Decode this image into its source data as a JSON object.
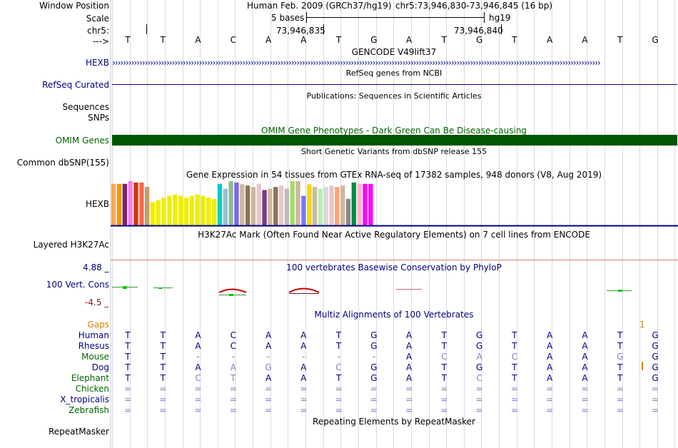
{
  "labels": {
    "window_position": "Window Position",
    "scale": "Scale",
    "chr": "chr5:",
    "arrow": "--->",
    "hexb_gencode": "HEXB",
    "refseq": "RefSeq Curated",
    "sequences": "Sequences",
    "snps": "SNPs",
    "omim": "OMIM Genes",
    "common_dbsnp": "Common dbSNP(155)",
    "hexb_gtex": "HEXB",
    "h3k27ac": "Layered H3K27Ac",
    "cons": "100 Vert. Cons",
    "cons_max": "4.88 _",
    "cons_min": "-4.5 _",
    "gaps": "Gaps",
    "repeatmasker": "RepeatMasker"
  },
  "header": {
    "assembly": "Human Feb. 2009 (GRCh37/hg19)",
    "position": "chr5:73,946,830-73,946,845 (16 bp)",
    "scale_text": "5 bases",
    "scale_db": "hg19",
    "coord1": "73,946,835",
    "coord2": "73,946,840"
  },
  "bases": [
    "T",
    "T",
    "A",
    "C",
    "A",
    "A",
    "T",
    "G",
    "A",
    "T",
    "G",
    "T",
    "A",
    "A",
    "T",
    "G"
  ],
  "tracks": {
    "gencode": "GENCODE V49lift37",
    "refseq": "RefSeq genes from NCBI",
    "publications": "Publications: Sequences in Scientific Articles",
    "omim": "OMIM Gene Phenotypes - Dark Green Can Be Disease-causing",
    "dbsnp": "Short Genetic Variants from dbSNP release 155",
    "gtex": "Gene Expression in 54 tissues from GTEx RNA-seq of 17382 samples, 948 donors (V8, Aug 2019)",
    "h3k27ac": "H3K27Ac Mark (Often Found Near Active Regulatory Elements) on 7 cell lines from ENCODE",
    "phylop": "100 vertebrates Basewise Conservation by PhyloP",
    "multiz": "Multiz Alignments of 100 Vertebrates",
    "repeatmasker": "Repeating Elements by RepeatMasker"
  },
  "gaps_value": "1",
  "species": [
    {
      "name": "Human",
      "seq": [
        "T",
        "T",
        "A",
        "C",
        "A",
        "A",
        "T",
        "G",
        "A",
        "T",
        "G",
        "T",
        "A",
        "A",
        "T",
        "G"
      ]
    },
    {
      "name": "Rhesus",
      "seq": [
        "T",
        "T",
        "A",
        "C",
        "A",
        "A",
        "T",
        "G",
        "A",
        "T",
        "G",
        "T",
        "A",
        "A",
        "T",
        "G"
      ]
    },
    {
      "name": "Mouse",
      "seq": [
        "T",
        "T",
        "-",
        "-",
        "-",
        "-",
        "-",
        "-",
        "A",
        "C",
        "A",
        "C",
        "A",
        "A",
        "G",
        "G"
      ]
    },
    {
      "name": "Dog",
      "seq": [
        "T",
        "T",
        "A",
        "A",
        "G",
        "A",
        "C",
        "G",
        "A",
        "T",
        "G",
        "T",
        "A",
        "A",
        "T",
        "G"
      ]
    },
    {
      "name": "Elephant",
      "seq": [
        "T",
        "T",
        "C",
        "T",
        "A",
        "A",
        "T",
        "G",
        "A",
        "T",
        "C",
        "T",
        "A",
        "A",
        "T",
        "G"
      ]
    },
    {
      "name": "Chicken",
      "seq": [
        "=",
        "=",
        "=",
        "=",
        "=",
        "=",
        "=",
        "=",
        "=",
        "=",
        "=",
        "=",
        "=",
        "=",
        "=",
        "="
      ]
    },
    {
      "name": "X_tropicalis",
      "seq": [
        "=",
        "=",
        "=",
        "=",
        "=",
        "=",
        "=",
        "=",
        "=",
        "=",
        "=",
        "=",
        "=",
        "=",
        "=",
        "="
      ]
    },
    {
      "name": "Zebrafish",
      "seq": [
        "=",
        "=",
        "=",
        "=",
        "=",
        "=",
        "=",
        "=",
        "=",
        "=",
        "=",
        "=",
        "=",
        "=",
        "=",
        "="
      ]
    }
  ],
  "gtex_bars": [
    {
      "v": 0.94,
      "c": "#FFA54F"
    },
    {
      "v": 0.94,
      "c": "#EE9A00"
    },
    {
      "v": 0.94,
      "c": "#8B1C62"
    },
    {
      "v": 1.0,
      "c": "#EE82EE"
    },
    {
      "v": 0.97,
      "c": "#CD3700"
    },
    {
      "v": 0.97,
      "c": "#FF6347"
    },
    {
      "v": 0.87,
      "c": "#C69C6D"
    },
    {
      "v": 0.53,
      "c": "#EEEE00"
    },
    {
      "v": 0.57,
      "c": "#EEEE00"
    },
    {
      "v": 0.63,
      "c": "#EEEE00"
    },
    {
      "v": 0.67,
      "c": "#EEEE00"
    },
    {
      "v": 0.7,
      "c": "#EEEE00"
    },
    {
      "v": 0.67,
      "c": "#EEEE00"
    },
    {
      "v": 0.63,
      "c": "#EEEE00"
    },
    {
      "v": 0.67,
      "c": "#EEEE00"
    },
    {
      "v": 0.7,
      "c": "#EEEE00"
    },
    {
      "v": 0.67,
      "c": "#EEEE00"
    },
    {
      "v": 0.63,
      "c": "#EEEE00"
    },
    {
      "v": 0.6,
      "c": "#EEEE00"
    },
    {
      "v": 0.94,
      "c": "#00CDCD"
    },
    {
      "v": 0.83,
      "c": "#9AC0CD"
    },
    {
      "v": 1.0,
      "c": "#8FBC8F"
    },
    {
      "v": 0.97,
      "c": "#7A67EE"
    },
    {
      "v": 0.93,
      "c": "#CDB79E"
    },
    {
      "v": 0.9,
      "c": "#8B7355"
    },
    {
      "v": 0.87,
      "c": "#CDB79E"
    },
    {
      "v": 0.94,
      "c": "#EEC5C5"
    },
    {
      "v": 0.8,
      "c": "#7A378B"
    },
    {
      "v": 0.83,
      "c": "#CDB79E"
    },
    {
      "v": 0.87,
      "c": "#8B7355"
    },
    {
      "v": 0.9,
      "c": "#EEC5C5"
    },
    {
      "v": 0.83,
      "c": "#BBBBBB"
    },
    {
      "v": 1.0,
      "c": "#A6D96A"
    },
    {
      "v": 1.0,
      "c": "#CDB79E"
    },
    {
      "v": 0.67,
      "c": "#7777FF"
    },
    {
      "v": 0.93,
      "c": "#FFD700"
    },
    {
      "v": 0.87,
      "c": "#CDB79E"
    },
    {
      "v": 0.83,
      "c": "#B4EEB4"
    },
    {
      "v": 0.87,
      "c": "#D9D9D9"
    },
    {
      "v": 0.9,
      "c": "#EEC5C5"
    },
    {
      "v": 0.87,
      "c": "#FFA07A"
    },
    {
      "v": 0.9,
      "c": "#CDB79E"
    },
    {
      "v": 0.6,
      "c": "#8B8989"
    },
    {
      "v": 0.97,
      "c": "#008B45"
    },
    {
      "v": 0.94,
      "c": "#FFB6C1"
    },
    {
      "v": 0.94,
      "c": "#FF00FF"
    },
    {
      "v": 0.94,
      "c": "#FF00FF"
    }
  ],
  "colors": {
    "navy": "#000080",
    "omim_green": "#005500",
    "grid": "#d9d9ea",
    "h3k27ac_line": "#e08070",
    "gaps": "#d08000",
    "cons_pos": "#2a7a2a",
    "cons_neg": "#8b1a1a"
  }
}
